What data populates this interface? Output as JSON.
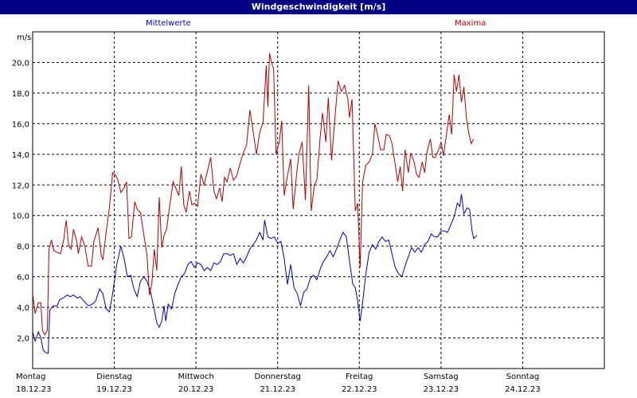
{
  "window": {
    "title": "Windgeschwindigkeit [m/s]"
  },
  "chart_data": {
    "type": "line",
    "title": "Windgeschwindigkeit [m/s]",
    "ylabel": "m/s",
    "ylim": [
      0,
      22
    ],
    "xlim": [
      0,
      7
    ],
    "yticks": [
      "2,0",
      "4,0",
      "6,0",
      "8,0",
      "10,0",
      "12,0",
      "14,0",
      "16,0",
      "18,0",
      "20,0"
    ],
    "ytick_values": [
      2,
      4,
      6,
      8,
      10,
      12,
      14,
      16,
      18,
      20
    ],
    "days": [
      {
        "weekday": "Montag",
        "date": "18.12.23"
      },
      {
        "weekday": "Dienstag",
        "date": "19.12.23"
      },
      {
        "weekday": "Mittwoch",
        "date": "20.12.23"
      },
      {
        "weekday": "Donnerstag",
        "date": "21.12.23"
      },
      {
        "weekday": "Freitag",
        "date": "22.12.23"
      },
      {
        "weekday": "Samstag",
        "date": "23.12.23"
      },
      {
        "weekday": "Sonntag",
        "date": "24.12.23"
      }
    ],
    "grid": true,
    "series": [
      {
        "name": "Mittelwerte",
        "color": "#0000b4",
        "points": [
          [
            0.0,
            2.4
          ],
          [
            0.03,
            1.8
          ],
          [
            0.07,
            2.4
          ],
          [
            0.1,
            2.0
          ],
          [
            0.13,
            1.2
          ],
          [
            0.17,
            1.0
          ],
          [
            0.19,
            1.0
          ],
          [
            0.21,
            3.8
          ],
          [
            0.25,
            4.1
          ],
          [
            0.3,
            4.1
          ],
          [
            0.33,
            4.5
          ],
          [
            0.37,
            4.6
          ],
          [
            0.42,
            4.8
          ],
          [
            0.46,
            4.7
          ],
          [
            0.5,
            4.8
          ],
          [
            0.55,
            4.6
          ],
          [
            0.58,
            4.7
          ],
          [
            0.63,
            4.4
          ],
          [
            0.68,
            4.1
          ],
          [
            0.73,
            4.2
          ],
          [
            0.77,
            4.4
          ],
          [
            0.82,
            5.2
          ],
          [
            0.86,
            4.9
          ],
          [
            0.9,
            3.9
          ],
          [
            0.94,
            3.7
          ],
          [
            0.98,
            4.9
          ],
          [
            1.03,
            6.8
          ],
          [
            1.08,
            8.0
          ],
          [
            1.12,
            7.2
          ],
          [
            1.16,
            6.0
          ],
          [
            1.2,
            6.1
          ],
          [
            1.24,
            5.2
          ],
          [
            1.28,
            4.7
          ],
          [
            1.32,
            5.7
          ],
          [
            1.36,
            6.0
          ],
          [
            1.4,
            5.7
          ],
          [
            1.44,
            5.1
          ],
          [
            1.48,
            4.1
          ],
          [
            1.52,
            3.0
          ],
          [
            1.55,
            2.7
          ],
          [
            1.58,
            3.1
          ],
          [
            1.61,
            4.1
          ],
          [
            1.63,
            3.1
          ],
          [
            1.66,
            4.2
          ],
          [
            1.7,
            3.9
          ],
          [
            1.74,
            4.9
          ],
          [
            1.78,
            5.5
          ],
          [
            1.82,
            6.0
          ],
          [
            1.86,
            6.2
          ],
          [
            1.9,
            6.8
          ],
          [
            1.94,
            7.0
          ],
          [
            1.98,
            6.6
          ],
          [
            2.02,
            6.9
          ],
          [
            2.06,
            6.8
          ],
          [
            2.1,
            6.4
          ],
          [
            2.14,
            6.6
          ],
          [
            2.18,
            6.4
          ],
          [
            2.22,
            6.9
          ],
          [
            2.26,
            6.8
          ],
          [
            2.3,
            7.0
          ],
          [
            2.34,
            7.5
          ],
          [
            2.38,
            7.5
          ],
          [
            2.42,
            7.4
          ],
          [
            2.46,
            7.5
          ],
          [
            2.5,
            6.8
          ],
          [
            2.54,
            7.2
          ],
          [
            2.58,
            6.9
          ],
          [
            2.62,
            7.3
          ],
          [
            2.66,
            7.8
          ],
          [
            2.7,
            8.1
          ],
          [
            2.74,
            8.4
          ],
          [
            2.78,
            8.9
          ],
          [
            2.82,
            8.4
          ],
          [
            2.84,
            9.7
          ],
          [
            2.88,
            8.6
          ],
          [
            2.92,
            8.5
          ],
          [
            2.96,
            8.6
          ],
          [
            3.0,
            8.2
          ],
          [
            3.04,
            8.3
          ],
          [
            3.08,
            7.2
          ],
          [
            3.12,
            5.5
          ],
          [
            3.16,
            6.8
          ],
          [
            3.2,
            5.3
          ],
          [
            3.24,
            4.9
          ],
          [
            3.28,
            4.1
          ],
          [
            3.32,
            5.0
          ],
          [
            3.36,
            5.2
          ],
          [
            3.4,
            5.9
          ],
          [
            3.44,
            6.1
          ],
          [
            3.48,
            5.8
          ],
          [
            3.52,
            6.5
          ],
          [
            3.56,
            7.0
          ],
          [
            3.6,
            7.3
          ],
          [
            3.64,
            7.7
          ],
          [
            3.68,
            7.3
          ],
          [
            3.72,
            7.8
          ],
          [
            3.76,
            8.4
          ],
          [
            3.8,
            8.9
          ],
          [
            3.84,
            8.6
          ],
          [
            3.88,
            7.0
          ],
          [
            3.92,
            5.5
          ],
          [
            3.95,
            5.3
          ],
          [
            3.98,
            4.4
          ],
          [
            4.01,
            3.1
          ],
          [
            4.04,
            4.3
          ],
          [
            4.08,
            6.2
          ],
          [
            4.12,
            7.6
          ],
          [
            4.16,
            8.1
          ],
          [
            4.2,
            7.8
          ],
          [
            4.24,
            8.3
          ],
          [
            4.28,
            8.6
          ],
          [
            4.32,
            8.3
          ],
          [
            4.36,
            8.4
          ],
          [
            4.4,
            7.5
          ],
          [
            4.44,
            6.6
          ],
          [
            4.48,
            6.2
          ],
          [
            4.52,
            6.0
          ],
          [
            4.56,
            6.7
          ],
          [
            4.6,
            7.3
          ],
          [
            4.64,
            7.9
          ],
          [
            4.68,
            7.6
          ],
          [
            4.72,
            7.9
          ],
          [
            4.76,
            7.6
          ],
          [
            4.8,
            8.1
          ],
          [
            4.84,
            8.3
          ],
          [
            4.88,
            8.8
          ],
          [
            4.92,
            8.6
          ],
          [
            4.96,
            8.6
          ],
          [
            5.0,
            9.0
          ],
          [
            5.04,
            9.0
          ],
          [
            5.08,
            8.9
          ],
          [
            5.12,
            9.4
          ],
          [
            5.16,
            9.9
          ],
          [
            5.2,
            10.8
          ],
          [
            5.23,
            10.6
          ],
          [
            5.25,
            11.4
          ],
          [
            5.28,
            10.1
          ],
          [
            5.32,
            10.5
          ],
          [
            5.35,
            10.4
          ],
          [
            5.38,
            9.0
          ],
          [
            5.4,
            8.5
          ],
          [
            5.44,
            8.7
          ]
        ]
      },
      {
        "name": "Maxima",
        "color": "#b40000",
        "points": [
          [
            0.0,
            4.9
          ],
          [
            0.03,
            3.6
          ],
          [
            0.07,
            4.3
          ],
          [
            0.1,
            4.3
          ],
          [
            0.12,
            2.5
          ],
          [
            0.15,
            2.2
          ],
          [
            0.18,
            2.5
          ],
          [
            0.2,
            7.8
          ],
          [
            0.23,
            8.4
          ],
          [
            0.26,
            7.7
          ],
          [
            0.3,
            7.6
          ],
          [
            0.34,
            7.5
          ],
          [
            0.38,
            8.4
          ],
          [
            0.41,
            9.7
          ],
          [
            0.44,
            8.1
          ],
          [
            0.47,
            7.8
          ],
          [
            0.5,
            9.1
          ],
          [
            0.54,
            8.3
          ],
          [
            0.56,
            7.5
          ],
          [
            0.6,
            8.6
          ],
          [
            0.64,
            8.0
          ],
          [
            0.68,
            6.7
          ],
          [
            0.72,
            6.7
          ],
          [
            0.75,
            8.3
          ],
          [
            0.8,
            9.2
          ],
          [
            0.84,
            7.4
          ],
          [
            0.86,
            7.1
          ],
          [
            0.9,
            8.9
          ],
          [
            0.94,
            10.5
          ],
          [
            0.98,
            12.8
          ],
          [
            1.02,
            12.6
          ],
          [
            1.05,
            12.2
          ],
          [
            1.08,
            11.5
          ],
          [
            1.12,
            11.8
          ],
          [
            1.15,
            12.2
          ],
          [
            1.18,
            8.5
          ],
          [
            1.21,
            8.6
          ],
          [
            1.25,
            10.9
          ],
          [
            1.28,
            10.4
          ],
          [
            1.32,
            10.2
          ],
          [
            1.36,
            8.8
          ],
          [
            1.4,
            7.4
          ],
          [
            1.43,
            4.8
          ],
          [
            1.46,
            5.6
          ],
          [
            1.49,
            7.8
          ],
          [
            1.52,
            6.4
          ],
          [
            1.55,
            11.2
          ],
          [
            1.58,
            7.9
          ],
          [
            1.61,
            8.7
          ],
          [
            1.64,
            9.1
          ],
          [
            1.68,
            10.7
          ],
          [
            1.72,
            12.2
          ],
          [
            1.76,
            11.7
          ],
          [
            1.79,
            11.3
          ],
          [
            1.82,
            13.2
          ],
          [
            1.85,
            10.7
          ],
          [
            1.88,
            10.2
          ],
          [
            1.92,
            11.6
          ],
          [
            1.95,
            10.7
          ],
          [
            1.98,
            10.8
          ],
          [
            2.02,
            10.6
          ],
          [
            2.06,
            12.7
          ],
          [
            2.1,
            12.0
          ],
          [
            2.14,
            12.9
          ],
          [
            2.18,
            13.8
          ],
          [
            2.22,
            11.6
          ],
          [
            2.25,
            11.1
          ],
          [
            2.29,
            11.8
          ],
          [
            2.32,
            10.9
          ],
          [
            2.35,
            12.5
          ],
          [
            2.38,
            12.2
          ],
          [
            2.42,
            13.1
          ],
          [
            2.46,
            12.3
          ],
          [
            2.5,
            12.6
          ],
          [
            2.54,
            13.4
          ],
          [
            2.58,
            14.1
          ],
          [
            2.62,
            14.6
          ],
          [
            2.66,
            16.9
          ],
          [
            2.7,
            15.5
          ],
          [
            2.74,
            14.0
          ],
          [
            2.78,
            15.4
          ],
          [
            2.82,
            16.1
          ],
          [
            2.86,
            19.8
          ],
          [
            2.88,
            17.1
          ],
          [
            2.9,
            20.6
          ],
          [
            2.93,
            19.9
          ],
          [
            2.95,
            19.6
          ],
          [
            2.98,
            14.0
          ],
          [
            3.02,
            14.8
          ],
          [
            3.05,
            16.2
          ],
          [
            3.08,
            11.3
          ],
          [
            3.12,
            12.6
          ],
          [
            3.16,
            13.7
          ],
          [
            3.19,
            10.4
          ],
          [
            3.23,
            12.6
          ],
          [
            3.26,
            14.0
          ],
          [
            3.3,
            14.8
          ],
          [
            3.34,
            11.0
          ],
          [
            3.38,
            18.5
          ],
          [
            3.41,
            10.3
          ],
          [
            3.45,
            12.0
          ],
          [
            3.48,
            12.3
          ],
          [
            3.52,
            15.1
          ],
          [
            3.55,
            16.7
          ],
          [
            3.59,
            14.8
          ],
          [
            3.62,
            17.7
          ],
          [
            3.66,
            13.6
          ],
          [
            3.7,
            16.3
          ],
          [
            3.74,
            18.8
          ],
          [
            3.78,
            18.1
          ],
          [
            3.82,
            18.5
          ],
          [
            3.86,
            17.6
          ],
          [
            3.88,
            16.4
          ],
          [
            3.91,
            17.6
          ],
          [
            3.95,
            10.3
          ],
          [
            3.98,
            10.8
          ],
          [
            4.01,
            6.6
          ],
          [
            4.04,
            12.2
          ],
          [
            4.08,
            13.3
          ],
          [
            4.12,
            13.5
          ],
          [
            4.16,
            14.0
          ],
          [
            4.19,
            16.0
          ],
          [
            4.23,
            15.1
          ],
          [
            4.26,
            14.3
          ],
          [
            4.3,
            14.3
          ],
          [
            4.33,
            15.3
          ],
          [
            4.37,
            15.2
          ],
          [
            4.4,
            14.7
          ],
          [
            4.44,
            13.3
          ],
          [
            4.47,
            12.2
          ],
          [
            4.5,
            13.2
          ],
          [
            4.53,
            11.6
          ],
          [
            4.56,
            14.3
          ],
          [
            4.6,
            12.8
          ],
          [
            4.63,
            14.1
          ],
          [
            4.67,
            13.5
          ],
          [
            4.7,
            12.7
          ],
          [
            4.73,
            12.5
          ],
          [
            4.77,
            13.5
          ],
          [
            4.8,
            12.8
          ],
          [
            4.83,
            14.2
          ],
          [
            4.87,
            15.0
          ],
          [
            4.9,
            13.8
          ],
          [
            4.93,
            13.8
          ],
          [
            4.97,
            14.3
          ],
          [
            5.0,
            14.8
          ],
          [
            5.03,
            13.9
          ],
          [
            5.07,
            15.4
          ],
          [
            5.1,
            16.6
          ],
          [
            5.13,
            15.3
          ],
          [
            5.16,
            19.2
          ],
          [
            5.19,
            18.1
          ],
          [
            5.22,
            19.2
          ],
          [
            5.25,
            17.4
          ],
          [
            5.28,
            18.4
          ],
          [
            5.31,
            16.4
          ],
          [
            5.34,
            15.4
          ],
          [
            5.37,
            14.7
          ],
          [
            5.4,
            15.0
          ]
        ]
      }
    ]
  }
}
